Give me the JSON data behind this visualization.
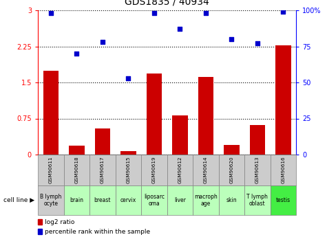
{
  "title": "GDS1835 / 40934",
  "gsm_labels": [
    "GSM90611",
    "GSM90618",
    "GSM90617",
    "GSM90615",
    "GSM90619",
    "GSM90612",
    "GSM90614",
    "GSM90620",
    "GSM90613",
    "GSM90616"
  ],
  "cell_lines": [
    "B lymph\nocyte",
    "brain",
    "breast",
    "cervix",
    "liposarc\noma",
    "liver",
    "macroph\nage",
    "skin",
    "T lymph\noblast",
    "testis"
  ],
  "cell_bg_colors": [
    "#cccccc",
    "#bbffbb",
    "#bbffbb",
    "#bbffbb",
    "#bbffbb",
    "#bbffbb",
    "#bbffbb",
    "#bbffbb",
    "#bbffbb",
    "#44ee44"
  ],
  "gsm_bg_color": "#cccccc",
  "log2_ratio": [
    1.75,
    0.18,
    0.55,
    0.07,
    1.68,
    0.82,
    1.62,
    0.2,
    0.62,
    2.27
  ],
  "percentile_rank": [
    98,
    70,
    78,
    53,
    98,
    87,
    98,
    80,
    77,
    99
  ],
  "ylim_left": [
    0,
    3
  ],
  "ylim_right": [
    0,
    100
  ],
  "yticks_left": [
    0,
    0.75,
    1.5,
    2.25,
    3
  ],
  "ytick_labels_left": [
    "0",
    "0.75",
    "1.5",
    "2.25",
    "3"
  ],
  "yticks_right": [
    0,
    25,
    50,
    75,
    100
  ],
  "ytick_labels_right": [
    "0",
    "25",
    "50",
    "75",
    "100%"
  ],
  "bar_color": "#cc0000",
  "scatter_color": "#0000cc",
  "legend_bar_label": "log2 ratio",
  "legend_scatter_label": "percentile rank within the sample",
  "cell_line_label": "cell line",
  "bg_color": "#ffffff"
}
